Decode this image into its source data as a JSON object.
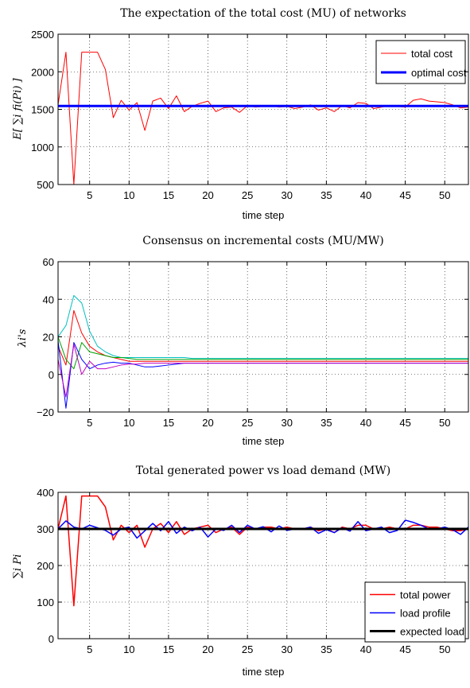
{
  "chart_data": [
    {
      "type": "line",
      "title": "The expectation of the total cost (MU) of networks",
      "xlabel": "time step",
      "ylabel": "E[ ∑i fi(Pi) ]",
      "xlim": [
        1,
        53
      ],
      "ylim": [
        500,
        2500
      ],
      "xticks": [
        5,
        10,
        15,
        20,
        25,
        30,
        35,
        40,
        45,
        50
      ],
      "yticks": [
        500,
        1000,
        1500,
        2000,
        2500
      ],
      "grid": true,
      "legend_position": "top-right",
      "series": [
        {
          "name": "total cost",
          "color": "#ff0000",
          "width": 1,
          "x": [
            1,
            2,
            3,
            4,
            5,
            6,
            7,
            8,
            9,
            10,
            11,
            12,
            13,
            14,
            15,
            16,
            17,
            18,
            19,
            20,
            21,
            22,
            23,
            24,
            25,
            26,
            27,
            28,
            29,
            30,
            31,
            32,
            33,
            34,
            35,
            36,
            37,
            38,
            39,
            40,
            41,
            42,
            43,
            44,
            45,
            46,
            47,
            48,
            49,
            50,
            51,
            52,
            53
          ],
          "values": [
            1560,
            2260,
            500,
            2260,
            2260,
            2260,
            2030,
            1390,
            1620,
            1490,
            1590,
            1220,
            1610,
            1650,
            1510,
            1680,
            1470,
            1540,
            1580,
            1610,
            1470,
            1520,
            1530,
            1460,
            1550,
            1530,
            1540,
            1550,
            1530,
            1540,
            1510,
            1530,
            1560,
            1490,
            1520,
            1470,
            1550,
            1520,
            1590,
            1580,
            1510,
            1530,
            1550,
            1540,
            1530,
            1620,
            1640,
            1610,
            1600,
            1590,
            1560,
            1520,
            1530
          ]
        },
        {
          "name": "optimal cost",
          "color": "#0000ff",
          "width": 3,
          "x": [
            1,
            53
          ],
          "values": [
            1545,
            1545
          ]
        }
      ]
    },
    {
      "type": "line",
      "title": "Consensus on incremental costs (MU/MW)",
      "xlabel": "time step",
      "ylabel": "λi's",
      "xlim": [
        1,
        53
      ],
      "ylim": [
        -20,
        60
      ],
      "xticks": [
        5,
        10,
        15,
        20,
        25,
        30,
        35,
        40,
        45,
        50
      ],
      "yticks": [
        -20,
        0,
        20,
        40,
        60
      ],
      "grid": true,
      "series": [
        {
          "color": "#00bfbf",
          "width": 1,
          "x": [
            1,
            2,
            3,
            4,
            5,
            6,
            7,
            8,
            9,
            10,
            11,
            12,
            13,
            14,
            15,
            16,
            17,
            18,
            19,
            20,
            21,
            22,
            23,
            24,
            25,
            26,
            27,
            28,
            29,
            30,
            31,
            32,
            33,
            34,
            35,
            36,
            37,
            38,
            39,
            40,
            41,
            42,
            43,
            44,
            45,
            46,
            47,
            48,
            49,
            50,
            51,
            52,
            53
          ],
          "values": [
            20,
            26,
            42,
            38,
            23,
            15,
            12,
            10,
            9,
            9,
            9,
            9,
            9,
            9,
            9,
            9,
            9,
            8.5,
            8.5,
            8.5,
            8.5,
            8.5,
            8.5,
            8.5,
            8.5,
            8.5,
            8.5,
            8.5,
            8.5,
            8.5,
            8.5,
            8.5,
            8.5,
            8.5,
            8.5,
            8.5,
            8.5,
            8.5,
            8.5,
            8.5,
            8.5,
            8.5,
            8.5,
            8.5,
            8.5,
            8.5,
            8.5,
            8.5,
            8.5,
            8.5,
            8.5,
            8.5,
            8.5
          ]
        },
        {
          "color": "#ff0000",
          "width": 1,
          "x": [
            1,
            2,
            3,
            4,
            5,
            6,
            7,
            8,
            9,
            10,
            11,
            12,
            13,
            14,
            15,
            16,
            17,
            18,
            19,
            20,
            21,
            22,
            23,
            24,
            25,
            26,
            27,
            28,
            29,
            30,
            31,
            32,
            33,
            34,
            35,
            36,
            37,
            38,
            39,
            40,
            41,
            42,
            43,
            44,
            45,
            46,
            47,
            48,
            49,
            50,
            51,
            52,
            53
          ],
          "values": [
            15,
            5,
            34,
            22,
            15,
            12,
            10,
            9,
            8,
            7,
            7,
            7,
            7,
            7,
            7,
            7,
            7,
            7,
            7,
            7,
            7,
            7,
            7,
            7,
            7,
            7,
            7,
            7,
            7,
            7,
            7,
            7,
            7,
            7,
            7,
            7,
            7,
            7,
            7,
            7,
            7,
            7,
            7,
            7,
            7,
            7,
            7,
            7,
            7,
            7,
            7,
            7,
            7
          ]
        },
        {
          "color": "#00a000",
          "width": 1,
          "x": [
            1,
            2,
            3,
            4,
            5,
            6,
            7,
            8,
            9,
            10,
            11,
            12,
            13,
            14,
            15,
            16,
            17,
            18,
            19,
            20,
            21,
            22,
            23,
            24,
            25,
            26,
            27,
            28,
            29,
            30,
            31,
            32,
            33,
            34,
            35,
            36,
            37,
            38,
            39,
            40,
            41,
            42,
            43,
            44,
            45,
            46,
            47,
            48,
            49,
            50,
            51,
            52,
            53
          ],
          "values": [
            20,
            8,
            3,
            17,
            12,
            11,
            10,
            9,
            9,
            8.5,
            8,
            8,
            8,
            8,
            8,
            8,
            8,
            8,
            8,
            8,
            8,
            8,
            8,
            8,
            8,
            8,
            8,
            8,
            8,
            8,
            8,
            8,
            8,
            8,
            8,
            8,
            8,
            8,
            8,
            8,
            8,
            8,
            8,
            8,
            8,
            8,
            8,
            8,
            8,
            8,
            8,
            8,
            8
          ]
        },
        {
          "color": "#0000ff",
          "width": 1,
          "x": [
            1,
            2,
            3,
            4,
            5,
            6,
            7,
            8,
            9,
            10,
            11,
            12,
            13,
            14,
            15,
            16,
            17,
            18,
            19,
            20,
            21,
            22,
            23,
            24,
            25,
            26,
            27,
            28,
            29,
            30,
            31,
            32,
            33,
            34,
            35,
            36,
            37,
            38,
            39,
            40,
            41,
            42,
            43,
            44,
            45,
            46,
            47,
            48,
            49,
            50,
            51,
            52,
            53
          ],
          "values": [
            18,
            -18,
            17,
            8,
            3,
            5,
            6,
            6.5,
            6,
            6,
            5,
            4,
            4,
            4.5,
            5,
            5.5,
            6,
            6,
            6,
            6,
            6,
            6,
            6,
            6,
            6,
            6,
            6,
            6,
            6,
            6,
            6,
            6,
            6,
            6,
            6,
            6,
            6,
            6,
            6,
            6,
            6,
            6,
            6,
            6,
            6,
            6,
            6,
            6,
            6,
            6,
            6,
            6,
            6
          ]
        },
        {
          "color": "#bf00bf",
          "width": 1,
          "x": [
            1,
            2,
            3,
            4,
            5,
            6,
            7,
            8,
            9,
            10,
            11,
            12,
            13,
            14,
            15,
            16,
            17,
            18,
            19,
            20,
            21,
            22,
            23,
            24,
            25,
            26,
            27,
            28,
            29,
            30,
            31,
            32,
            33,
            34,
            35,
            36,
            37,
            38,
            39,
            40,
            41,
            42,
            43,
            44,
            45,
            46,
            47,
            48,
            49,
            50,
            51,
            52,
            53
          ],
          "values": [
            8,
            -12,
            16,
            0,
            7,
            3,
            3,
            4,
            5,
            5.5,
            5.5,
            6,
            6,
            6,
            6,
            6,
            6,
            6,
            6,
            6,
            6,
            6,
            6,
            6,
            6,
            6,
            6,
            6,
            6,
            6,
            6,
            6,
            6,
            6,
            6,
            6,
            6,
            6,
            6,
            6,
            6,
            6,
            6,
            6,
            6,
            6,
            6,
            6,
            6,
            6,
            6,
            6,
            6
          ]
        }
      ]
    },
    {
      "type": "line",
      "title": "Total generated power vs load demand (MW)",
      "xlabel": "time step",
      "ylabel": "∑i Pi",
      "xlim": [
        1,
        53
      ],
      "ylim": [
        0,
        400
      ],
      "xticks": [
        5,
        10,
        15,
        20,
        25,
        30,
        35,
        40,
        45,
        50
      ],
      "yticks": [
        0,
        100,
        200,
        300,
        400
      ],
      "grid": true,
      "legend_position": "bottom-right",
      "series": [
        {
          "name": "total power",
          "color": "#ff0000",
          "width": 1.5,
          "x": [
            1,
            2,
            3,
            4,
            5,
            6,
            7,
            8,
            9,
            10,
            11,
            12,
            13,
            14,
            15,
            16,
            17,
            18,
            19,
            20,
            21,
            22,
            23,
            24,
            25,
            26,
            27,
            28,
            29,
            30,
            31,
            32,
            33,
            34,
            35,
            36,
            37,
            38,
            39,
            40,
            41,
            42,
            43,
            44,
            45,
            46,
            47,
            48,
            49,
            50,
            51,
            52,
            53
          ],
          "values": [
            300,
            390,
            90,
            390,
            390,
            390,
            360,
            270,
            310,
            290,
            310,
            250,
            300,
            315,
            290,
            320,
            285,
            300,
            305,
            310,
            290,
            300,
            305,
            285,
            305,
            300,
            305,
            305,
            300,
            305,
            300,
            300,
            305,
            295,
            300,
            290,
            305,
            300,
            310,
            310,
            300,
            300,
            305,
            300,
            300,
            310,
            310,
            305,
            305,
            300,
            295,
            295,
            300
          ]
        },
        {
          "name": "load profile",
          "color": "#0000ff",
          "width": 1.5,
          "x": [
            1,
            2,
            3,
            4,
            5,
            6,
            7,
            8,
            9,
            10,
            11,
            12,
            13,
            14,
            15,
            16,
            17,
            18,
            19,
            20,
            21,
            22,
            23,
            24,
            25,
            26,
            27,
            28,
            29,
            30,
            31,
            32,
            33,
            34,
            35,
            36,
            37,
            38,
            39,
            40,
            41,
            42,
            43,
            44,
            45,
            46,
            47,
            48,
            49,
            50,
            51,
            52,
            53
          ],
          "values": [
            300,
            322,
            305,
            300,
            310,
            303,
            296,
            283,
            300,
            305,
            275,
            295,
            315,
            295,
            320,
            288,
            305,
            295,
            305,
            278,
            300,
            296,
            310,
            290,
            310,
            300,
            306,
            292,
            308,
            296,
            300,
            300,
            305,
            288,
            298,
            290,
            303,
            294,
            320,
            295,
            300,
            305,
            290,
            296,
            324,
            318,
            310,
            300,
            300,
            305,
            298,
            285,
            305
          ]
        },
        {
          "name": "expected load",
          "color": "#000000",
          "width": 3,
          "x": [
            1,
            53
          ],
          "values": [
            300,
            300
          ]
        }
      ]
    }
  ]
}
